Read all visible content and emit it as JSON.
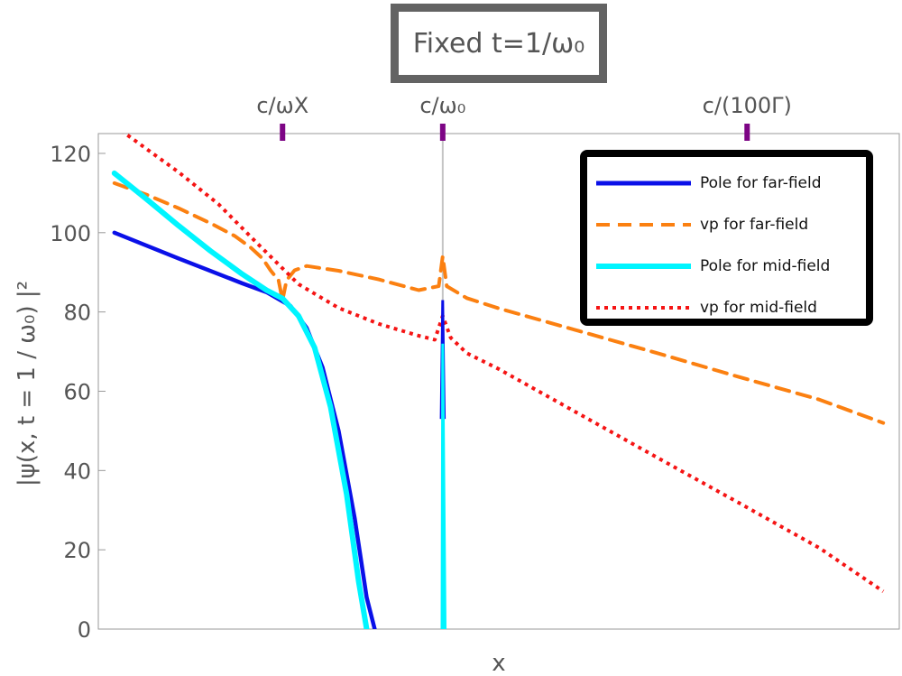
{
  "chart_data": {
    "type": "line",
    "title": "Fixed t=1/ω₀",
    "xlabel": "x",
    "ylabel": "|ψ(x, t = 1 / ω₀) |²",
    "ylim": [
      0,
      125
    ],
    "xlim": [
      0,
      1
    ],
    "x_ticks_shown": false,
    "yticks": [
      {
        "value": 0,
        "label": "0"
      },
      {
        "value": 20,
        "label": "20"
      },
      {
        "value": 40,
        "label": "40"
      },
      {
        "value": 60,
        "label": "60"
      },
      {
        "value": 80,
        "label": "80"
      },
      {
        "value": 100,
        "label": "100"
      },
      {
        "value": 120,
        "label": "120"
      }
    ],
    "grid": false,
    "legend_position": "top-right",
    "top_markers": [
      {
        "label": "c/ωX",
        "x": 0.23
      },
      {
        "label": "c/ω₀",
        "x": 0.43
      },
      {
        "label": "c/(100Γ)",
        "x": 0.81
      }
    ],
    "vertical_line": {
      "x": 0.43,
      "ymin": 53,
      "ymax": 125,
      "color": "#c4c4c4"
    },
    "series": [
      {
        "name": "Pole for far-field",
        "color": "#0a10e8",
        "style": "solid",
        "points": [
          [
            0.02,
            100
          ],
          [
            0.1,
            93.5
          ],
          [
            0.18,
            87.2
          ],
          [
            0.21,
            85.0
          ],
          [
            0.24,
            81.5
          ],
          [
            0.26,
            76
          ],
          [
            0.28,
            66
          ],
          [
            0.3,
            50
          ],
          [
            0.32,
            28
          ],
          [
            0.335,
            8
          ],
          [
            0.345,
            0
          ]
        ],
        "spike": [
          [
            0.428,
            53
          ],
          [
            0.43,
            83
          ],
          [
            0.432,
            53
          ]
        ]
      },
      {
        "name": "vp for far-field",
        "color": "#fb8011",
        "style": "dashed",
        "points": [
          [
            0.02,
            112.5
          ],
          [
            0.06,
            109.6
          ],
          [
            0.1,
            106.2
          ],
          [
            0.14,
            102.4
          ],
          [
            0.17,
            99.2
          ],
          [
            0.19,
            96.3
          ],
          [
            0.205,
            93.5
          ],
          [
            0.215,
            90.5
          ],
          [
            0.225,
            88
          ],
          [
            0.23,
            83
          ],
          [
            0.235,
            88
          ],
          [
            0.245,
            90.5
          ],
          [
            0.26,
            91.6
          ],
          [
            0.3,
            90.4
          ],
          [
            0.35,
            88.2
          ],
          [
            0.4,
            85.5
          ],
          [
            0.425,
            86.5
          ],
          [
            0.43,
            94
          ],
          [
            0.435,
            86.5
          ],
          [
            0.46,
            83.5
          ],
          [
            0.5,
            80.9
          ],
          [
            0.6,
            75.2
          ],
          [
            0.7,
            69.5
          ],
          [
            0.8,
            63.6
          ],
          [
            0.9,
            57.9
          ],
          [
            0.98,
            52
          ]
        ]
      },
      {
        "name": "Pole for mid-field",
        "color": "#00f5ff",
        "style": "solid",
        "points": [
          [
            0.02,
            115
          ],
          [
            0.06,
            108.5
          ],
          [
            0.1,
            101.8
          ],
          [
            0.14,
            95.4
          ],
          [
            0.18,
            89.5
          ],
          [
            0.21,
            85.5
          ],
          [
            0.23,
            83.4
          ],
          [
            0.25,
            79
          ],
          [
            0.27,
            71
          ],
          [
            0.29,
            56
          ],
          [
            0.31,
            34
          ],
          [
            0.325,
            12
          ],
          [
            0.335,
            0
          ]
        ],
        "spike": [
          [
            0.429,
            0
          ],
          [
            0.43,
            72
          ],
          [
            0.433,
            0
          ]
        ]
      },
      {
        "name": "vp for mid-field",
        "color": "#f51414",
        "style": "dotted",
        "points": [
          [
            0.02,
            127
          ],
          [
            0.1,
            115.3
          ],
          [
            0.15,
            107.2
          ],
          [
            0.2,
            97
          ],
          [
            0.25,
            87
          ],
          [
            0.3,
            81
          ],
          [
            0.35,
            77
          ],
          [
            0.4,
            74
          ],
          [
            0.42,
            73
          ],
          [
            0.43,
            79
          ],
          [
            0.44,
            73.5
          ],
          [
            0.46,
            69.6
          ],
          [
            0.5,
            65.6
          ],
          [
            0.6,
            54.3
          ],
          [
            0.7,
            43
          ],
          [
            0.8,
            31.8
          ],
          [
            0.9,
            20.5
          ],
          [
            0.98,
            9.5
          ]
        ]
      }
    ]
  }
}
